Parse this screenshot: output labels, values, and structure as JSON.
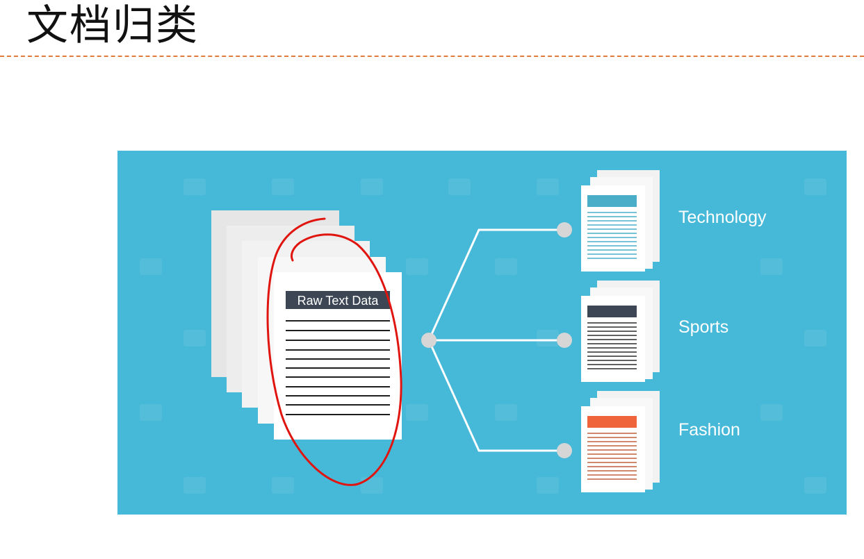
{
  "slide": {
    "title": "文档归类"
  },
  "diagram": {
    "source_label": "Raw Text Data",
    "categories": [
      {
        "label": "Technology",
        "color": "#4aaec8"
      },
      {
        "label": "Sports",
        "color": "#3d4654"
      },
      {
        "label": "Fashion",
        "color": "#f0643c"
      }
    ],
    "colors": {
      "background": "#46b8d8",
      "connector": "#ffffff",
      "node": "#d6d6d6",
      "annotation": "#e0150f"
    }
  }
}
